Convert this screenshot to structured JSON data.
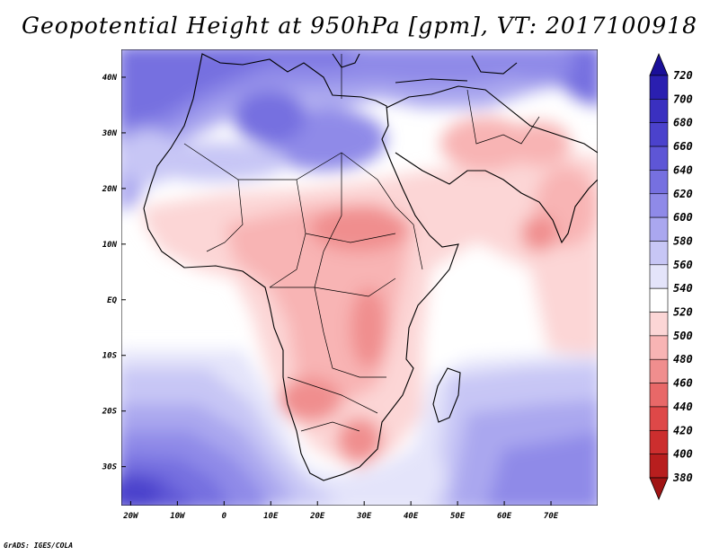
{
  "title": "Geopotential Height at 950hPa [gpm], VT: 2017100918",
  "footer": "GrADS: IGES/COLA",
  "map": {
    "lon_range": [
      -22,
      80
    ],
    "lat_range": [
      -37,
      45
    ],
    "lon_ticks": [
      {
        "value": -20,
        "label": "20W"
      },
      {
        "value": -10,
        "label": "10W"
      },
      {
        "value": 0,
        "label": "0"
      },
      {
        "value": 10,
        "label": "10E"
      },
      {
        "value": 20,
        "label": "20E"
      },
      {
        "value": 30,
        "label": "30E"
      },
      {
        "value": 40,
        "label": "40E"
      },
      {
        "value": 50,
        "label": "50E"
      },
      {
        "value": 60,
        "label": "60E"
      },
      {
        "value": 70,
        "label": "70E"
      }
    ],
    "lat_ticks": [
      {
        "value": 40,
        "label": "40N"
      },
      {
        "value": 30,
        "label": "30N"
      },
      {
        "value": 20,
        "label": "20N"
      },
      {
        "value": 10,
        "label": "10N"
      },
      {
        "value": 0,
        "label": "EQ"
      },
      {
        "value": -10,
        "label": "10S"
      },
      {
        "value": -20,
        "label": "20S"
      },
      {
        "value": -30,
        "label": "30S"
      }
    ]
  },
  "colorbar": {
    "levels": [
      "720",
      "700",
      "680",
      "660",
      "640",
      "620",
      "600",
      "580",
      "560",
      "540",
      "520",
      "500",
      "480",
      "460",
      "440",
      "420",
      "400",
      "380"
    ],
    "colors": [
      "#1a0f99",
      "#2a1fb0",
      "#3a30c0",
      "#4b42cc",
      "#5e56d6",
      "#7670e0",
      "#8f8ae8",
      "#aaa7ef",
      "#c7c6f5",
      "#e4e4fa",
      "#ffffff",
      "#fcd6d6",
      "#f8b4b4",
      "#f08e8e",
      "#e86868",
      "#de4848",
      "#cc2e2e",
      "#b81e1e",
      "#a01414"
    ]
  },
  "chart_data": {
    "type": "heatmap",
    "title": "Geopotential Height at 950hPa [gpm], VT: 2017100918",
    "xlabel": "",
    "ylabel": "",
    "x_range": [
      -22,
      80
    ],
    "y_range": [
      -37,
      45
    ],
    "colorbar_levels": [
      380,
      400,
      420,
      440,
      460,
      480,
      500,
      520,
      540,
      560,
      580,
      600,
      620,
      640,
      660,
      680,
      700,
      720
    ],
    "features": [
      {
        "lon": -10,
        "lat": 40,
        "value": 600
      },
      {
        "lon": 15,
        "lat": 30,
        "value": 610
      },
      {
        "lon": 25,
        "lat": 45,
        "value": 600
      },
      {
        "lon": 78,
        "lat": 40,
        "value": 630
      },
      {
        "lon": -15,
        "lat": 25,
        "value": 560
      },
      {
        "lon": 20,
        "lat": 10,
        "value": 515
      },
      {
        "lon": 30,
        "lat": 0,
        "value": 505
      },
      {
        "lon": 27,
        "lat": -20,
        "value": 505
      },
      {
        "lon": 75,
        "lat": 20,
        "value": 515
      },
      {
        "lon": 60,
        "lat": 0,
        "value": 540
      },
      {
        "lon": 55,
        "lat": -22,
        "value": 600
      },
      {
        "lon": -20,
        "lat": -33,
        "value": 690
      },
      {
        "lon": 5,
        "lat": -30,
        "value": 640
      },
      {
        "lon": 70,
        "lat": -30,
        "value": 620
      }
    ]
  }
}
